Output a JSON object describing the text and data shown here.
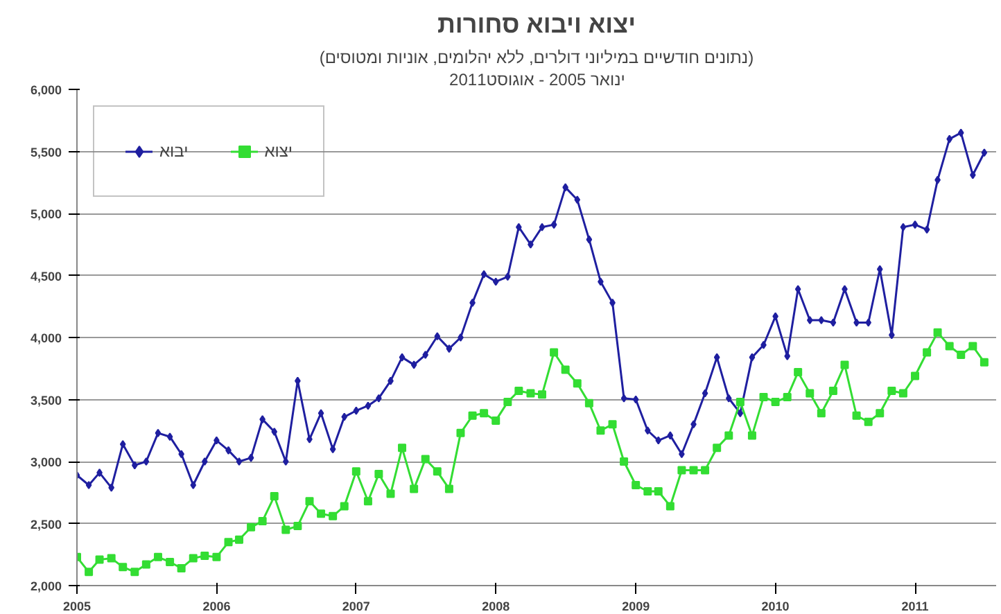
{
  "chart_data": {
    "type": "line",
    "title": "יצוא ויבוא סחורות",
    "subtitle": "(נתונים חודשיים במיליוני דולרים, ללא יהלומים, אוניות ומטוסים)",
    "annotations": [
      "ינואר 2005 - אוגוסט2011"
    ],
    "x": [
      "2005-01",
      "2005-02",
      "2005-03",
      "2005-04",
      "2005-05",
      "2005-06",
      "2005-07",
      "2005-08",
      "2005-09",
      "2005-10",
      "2005-11",
      "2005-12",
      "2006-01",
      "2006-02",
      "2006-03",
      "2006-04",
      "2006-05",
      "2006-06",
      "2006-07",
      "2006-08",
      "2006-09",
      "2006-10",
      "2006-11",
      "2006-12",
      "2007-01",
      "2007-02",
      "2007-03",
      "2007-04",
      "2007-05",
      "2007-06",
      "2007-07",
      "2007-08",
      "2007-09",
      "2007-10",
      "2007-11",
      "2007-12",
      "2008-01",
      "2008-02",
      "2008-03",
      "2008-04",
      "2008-05",
      "2008-06",
      "2008-07",
      "2008-08",
      "2008-09",
      "2008-10",
      "2008-11",
      "2008-12",
      "2009-01",
      "2009-02",
      "2009-03",
      "2009-04",
      "2009-05",
      "2009-06",
      "2009-07",
      "2009-08",
      "2009-09",
      "2009-10",
      "2009-11",
      "2009-12",
      "2010-01",
      "2010-02",
      "2010-03",
      "2010-04",
      "2010-05",
      "2010-06",
      "2010-07",
      "2010-08",
      "2010-09",
      "2010-10",
      "2010-11",
      "2010-12",
      "2011-01",
      "2011-02",
      "2011-03",
      "2011-04",
      "2011-05",
      "2011-06",
      "2011-07"
    ],
    "series": [
      {
        "name": "יבוא",
        "color": "#1f1fa0",
        "marker": "diamond",
        "values": [
          2890,
          2810,
          2910,
          2790,
          3140,
          2970,
          3000,
          3230,
          3200,
          3060,
          2810,
          3000,
          3170,
          3090,
          3000,
          3030,
          3340,
          3240,
          3000,
          3650,
          3180,
          3390,
          3100,
          3360,
          3410,
          3450,
          3510,
          3650,
          3840,
          3780,
          3860,
          4010,
          3910,
          4000,
          4280,
          4510,
          4450,
          4490,
          4890,
          4750,
          4890,
          4910,
          5210,
          5110,
          4790,
          4450,
          4280,
          3510,
          3500,
          3250,
          3170,
          3210,
          3060,
          3300,
          3550,
          3840,
          3510,
          3390,
          3840,
          3940,
          4170,
          3850,
          4390,
          4140,
          4140,
          4120,
          4390,
          4120,
          4120,
          4550,
          4020,
          4890,
          4910,
          4870,
          5270,
          5600,
          5650,
          5310,
          5490
        ]
      },
      {
        "name": "יצוא",
        "color": "#33dd33",
        "marker": "square",
        "values": [
          2230,
          2110,
          2210,
          2220,
          2150,
          2110,
          2170,
          2230,
          2190,
          2140,
          2220,
          2240,
          2230,
          2350,
          2370,
          2470,
          2520,
          2720,
          2450,
          2480,
          2680,
          2580,
          2560,
          2640,
          2920,
          2680,
          2900,
          2740,
          3110,
          2780,
          3020,
          2920,
          2780,
          3230,
          3370,
          3390,
          3330,
          3480,
          3570,
          3550,
          3540,
          3880,
          3740,
          3630,
          3470,
          3250,
          3300,
          3000,
          2810,
          2760,
          2760,
          2640,
          2930,
          2930,
          2930,
          3110,
          3210,
          3480,
          3210,
          3520,
          3480,
          3520,
          3720,
          3550,
          3390,
          3570,
          3780,
          3370,
          3320,
          3390,
          3570,
          3550,
          3690,
          3880,
          4040,
          3930,
          3860,
          3930,
          3800
        ]
      }
    ],
    "xlim": [
      "2005-01",
      "2011-08"
    ],
    "xticks": [
      "2005",
      "2006",
      "2007",
      "2008",
      "2009",
      "2010",
      "2011"
    ],
    "ylim": [
      2000,
      6000
    ],
    "yticks": [
      {
        "value": 2000,
        "label": "2,000"
      },
      {
        "value": 2500,
        "label": "2,500"
      },
      {
        "value": 3000,
        "label": "3,000"
      },
      {
        "value": 3500,
        "label": "3,500"
      },
      {
        "value": 4000,
        "label": "4,000"
      },
      {
        "value": 4500,
        "label": "4,500"
      },
      {
        "value": 5000,
        "label": "5,000"
      },
      {
        "value": 5500,
        "label": "5,500"
      },
      {
        "value": 6000,
        "label": "6,000"
      }
    ],
    "grid": "y",
    "legend": "top left",
    "line_style": "solid"
  }
}
